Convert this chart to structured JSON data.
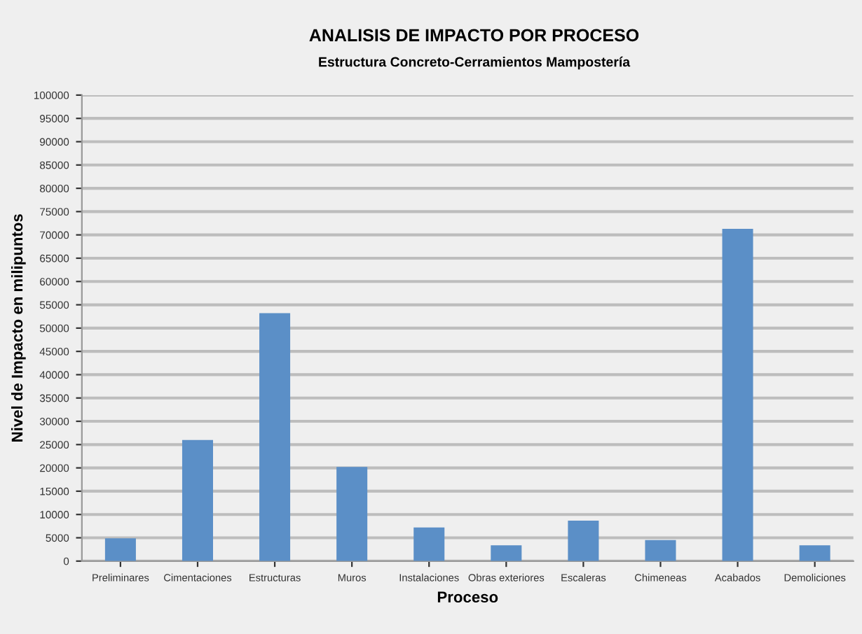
{
  "chart_data": {
    "type": "bar",
    "title": "ANALISIS DE IMPACTO POR PROCESO",
    "subtitle": "Estructura Concreto-Cerramientos Mampostería",
    "xlabel": "Proceso",
    "ylabel": "Nivel de Impacto en milipuntos",
    "categories": [
      "Preliminares",
      "Cimentaciones",
      "Estructuras",
      "Muros",
      "Instalaciones",
      "Obras exteriores",
      "Escaleras",
      "Chimeneas",
      "Acabados",
      "Demoliciones"
    ],
    "values": [
      4900,
      26000,
      53200,
      20200,
      7200,
      3400,
      8700,
      4500,
      71300,
      3400
    ],
    "color": "#5b8fc7",
    "ylim": [
      0,
      100000
    ],
    "yticks": [
      0,
      5000,
      10000,
      15000,
      20000,
      25000,
      30000,
      35000,
      40000,
      45000,
      50000,
      55000,
      60000,
      65000,
      70000,
      75000,
      80000,
      85000,
      90000,
      95000,
      100000
    ],
    "grid": "y",
    "legend": false
  }
}
